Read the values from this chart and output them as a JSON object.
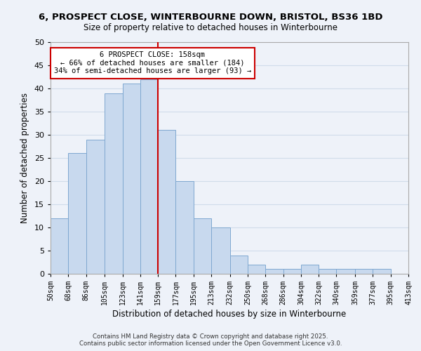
{
  "title": "6, PROSPECT CLOSE, WINTERBOURNE DOWN, BRISTOL, BS36 1BD",
  "subtitle": "Size of property relative to detached houses in Winterbourne",
  "xlabel": "Distribution of detached houses by size in Winterbourne",
  "ylabel": "Number of detached properties",
  "bins": [
    50,
    68,
    86,
    105,
    123,
    141,
    159,
    177,
    195,
    213,
    232,
    250,
    268,
    286,
    304,
    322,
    340,
    359,
    377,
    395,
    413
  ],
  "bin_labels": [
    "50sqm",
    "68sqm",
    "86sqm",
    "105sqm",
    "123sqm",
    "141sqm",
    "159sqm",
    "177sqm",
    "195sqm",
    "213sqm",
    "232sqm",
    "250sqm",
    "268sqm",
    "286sqm",
    "304sqm",
    "322sqm",
    "340sqm",
    "359sqm",
    "377sqm",
    "395sqm",
    "413sqm"
  ],
  "counts": [
    12,
    26,
    29,
    39,
    41,
    42,
    31,
    20,
    12,
    10,
    4,
    2,
    1,
    1,
    2,
    1,
    1,
    1,
    1,
    0
  ],
  "bar_color": "#c8d9ee",
  "bar_edge_color": "#7fa8d0",
  "reference_line_color": "#cc0000",
  "annotation_label": "6 PROSPECT CLOSE: 158sqm",
  "annotation_line1": "← 66% of detached houses are smaller (184)",
  "annotation_line2": "34% of semi-detached houses are larger (93) →",
  "annotation_box_color": "#ffffff",
  "annotation_box_edge": "#cc0000",
  "grid_color": "#d0dcea",
  "background_color": "#eef2f9",
  "ylim": [
    0,
    50
  ],
  "yticks": [
    0,
    5,
    10,
    15,
    20,
    25,
    30,
    35,
    40,
    45,
    50
  ],
  "footnote1": "Contains HM Land Registry data © Crown copyright and database right 2025.",
  "footnote2": "Contains public sector information licensed under the Open Government Licence v3.0."
}
